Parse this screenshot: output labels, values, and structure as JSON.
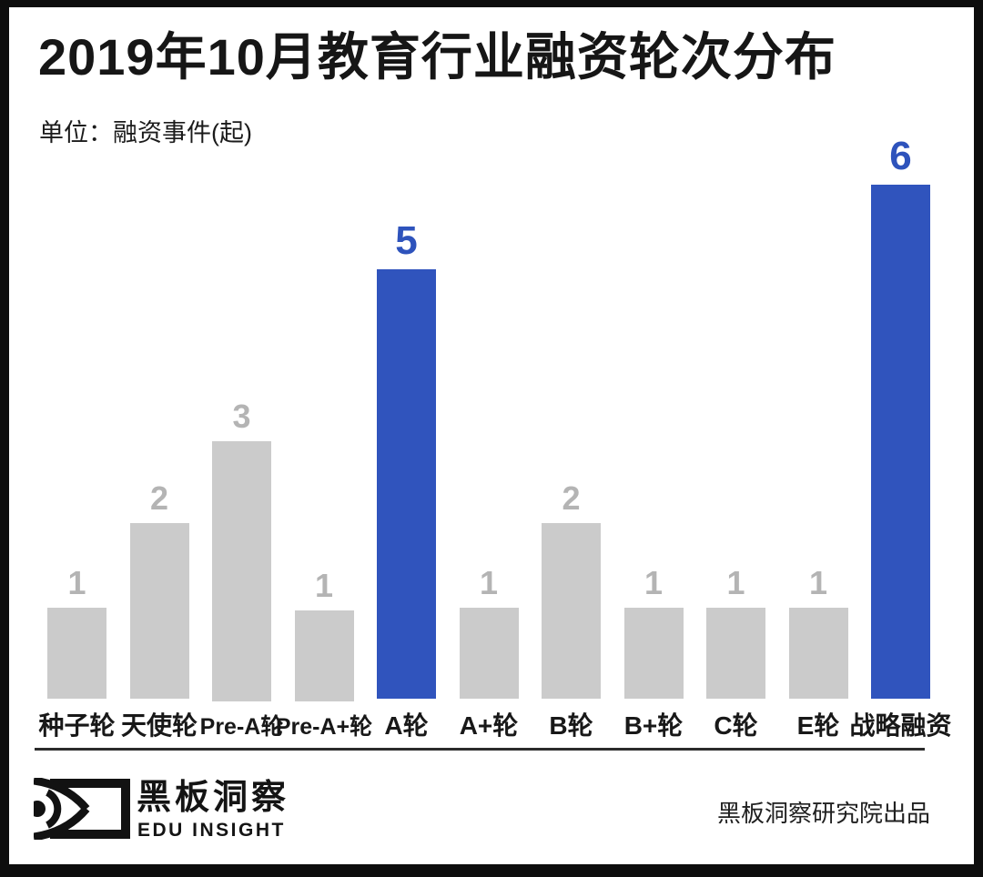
{
  "page": {
    "title": "2019年10月教育行业融资轮次分布",
    "unit_label": "单位：融资事件(起)"
  },
  "chart_data": {
    "type": "bar",
    "title": "2019年10月教育行业融资轮次分布",
    "ylabel": "融资事件(起)",
    "categories": [
      "种子轮",
      "天使轮",
      "Pre-A轮",
      "Pre-A+轮",
      "A轮",
      "A+轮",
      "B轮",
      "B+轮",
      "C轮",
      "E轮",
      "战略融资"
    ],
    "values": [
      1,
      2,
      3,
      1,
      5,
      1,
      2,
      1,
      1,
      1,
      6
    ],
    "highlighted_categories": [
      "A轮",
      "战略融资"
    ],
    "value_labels_shown": true,
    "ylim": [
      0,
      6
    ],
    "grid": false,
    "legend": false,
    "colors": {
      "bar_default": "#cbcbcb",
      "bar_highlight": "#3054bd",
      "value_default": "#b4b4b4",
      "value_highlight": "#2e53bc"
    }
  },
  "footer": {
    "brand_cn": "黑板洞察",
    "brand_en": "EDU INSIGHT",
    "credit": "黑板洞察研究院出品"
  }
}
